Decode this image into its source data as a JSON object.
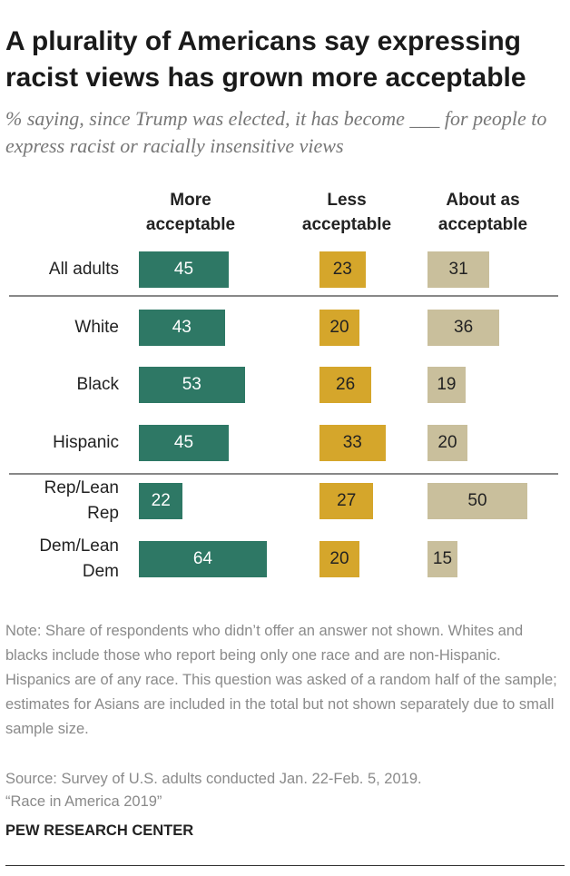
{
  "chart_data": {
    "type": "bar",
    "orientation": "horizontal",
    "title": "A plurality of Americans say expressing racist views has grown more acceptable",
    "subtitle": "% saying, since Trump was elected, it has become ___ for people to express racist or racially insensitive views",
    "categories": [
      "All adults",
      "White",
      "Black",
      "Hispanic",
      "Rep/Lean Rep",
      "Dem/Lean Dem"
    ],
    "series": [
      {
        "name": "More acceptable",
        "color": "#2e7865",
        "label_color": "#ffffff",
        "values": [
          45,
          43,
          53,
          45,
          22,
          64
        ]
      },
      {
        "name": "Less acceptable",
        "color": "#d5a62b",
        "label_color": "#222222",
        "values": [
          23,
          20,
          26,
          33,
          27,
          20
        ]
      },
      {
        "name": "About as acceptable",
        "color": "#c9bf9c",
        "label_color": "#222222",
        "values": [
          31,
          36,
          19,
          20,
          50,
          15
        ]
      }
    ],
    "note": "Note: Share of respondents who didn’t offer an answer not shown. Whites and blacks include those who report being only one race and are non-Hispanic. Hispanics are of any race. This question was asked of a random half of the sample; estimates for Asians are included in the total but not shown separately due to small sample size.",
    "source": "Source: Survey of U.S. adults conducted Jan. 22-Feb. 5, 2019.",
    "report": "“Race in America 2019”",
    "branding": "PEW RESEARCH CENTER"
  }
}
